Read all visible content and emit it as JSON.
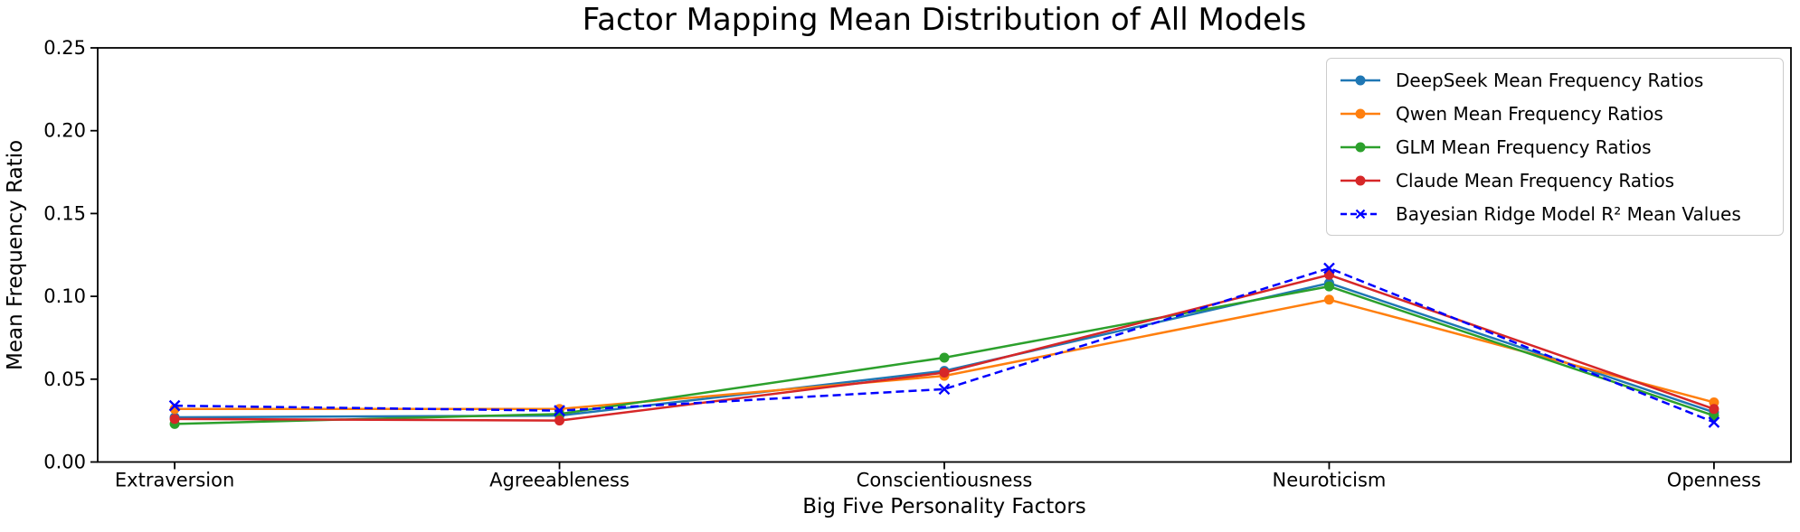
{
  "chart_data": {
    "type": "line",
    "title": "Factor Mapping Mean Distribution of All Models",
    "xlabel": "Big Five Personality Factors",
    "ylabel": "Mean Frequency Ratio",
    "categories": [
      "Extraversion",
      "Agreeableness",
      "Conscientiousness",
      "Neuroticism",
      "Openness"
    ],
    "ylim": [
      0,
      0.25
    ],
    "yticks": [
      0,
      0.05,
      0.1,
      0.15,
      0.2,
      0.25
    ],
    "grid": false,
    "legend_position": "upper right",
    "series": [
      {
        "name": "DeepSeek Mean Frequency Ratios",
        "color": "#1f77b4",
        "line_style": "solid",
        "marker": "circle",
        "values": [
          0.027,
          0.028,
          0.055,
          0.108,
          0.03
        ]
      },
      {
        "name": "Qwen Mean Frequency Ratios",
        "color": "#ff7f0e",
        "line_style": "solid",
        "marker": "circle",
        "values": [
          0.032,
          0.032,
          0.052,
          0.098,
          0.036
        ]
      },
      {
        "name": "GLM Mean Frequency Ratios",
        "color": "#2ca02c",
        "line_style": "solid",
        "marker": "circle",
        "values": [
          0.023,
          0.029,
          0.063,
          0.106,
          0.028
        ]
      },
      {
        "name": "Claude Mean Frequency Ratios",
        "color": "#d62728",
        "line_style": "solid",
        "marker": "circle",
        "values": [
          0.026,
          0.025,
          0.054,
          0.113,
          0.032
        ]
      },
      {
        "name": "Bayesian Ridge Model R² Mean Values",
        "color": "#0000ff",
        "line_style": "dashed",
        "marker": "x",
        "values": [
          0.034,
          0.031,
          0.044,
          0.117,
          0.024
        ]
      }
    ]
  }
}
